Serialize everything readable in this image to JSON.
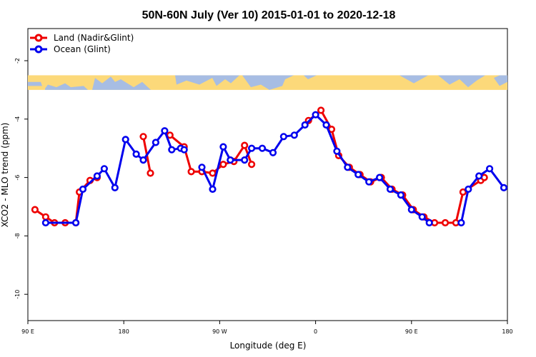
{
  "chart_data": {
    "type": "line",
    "title": "50N-60N July (Ver 10)   2015-01-01 to 2020-12-18",
    "xlabel": "Longitude (deg E)",
    "ylabel": "XCO2 - MLO trend (ppm)",
    "xlim": [
      -90,
      180
    ],
    "ylim": [
      -10.9,
      -0.9
    ],
    "x_ticks": [
      {
        "value": -90,
        "label": "90 E"
      },
      {
        "value": -36,
        "label": "180"
      },
      {
        "value": 18,
        "label": "90 W"
      },
      {
        "value": 72,
        "label": "0"
      },
      {
        "value": 126,
        "label": "90 E"
      },
      {
        "value": 180,
        "label": "180"
      }
    ],
    "y_ticks": [
      {
        "value": -2,
        "label": "-2"
      },
      {
        "value": -4,
        "label": "-4"
      },
      {
        "value": -6,
        "label": "-6"
      },
      {
        "value": -8,
        "label": "-8"
      },
      {
        "value": -10,
        "label": "-10"
      }
    ],
    "grid": false,
    "legend_position": "top-left",
    "map_band": {
      "y_top": -2.5,
      "y_bottom": -3.0,
      "ocean_color": "#a7bde3",
      "land_color": "#fcd97a"
    },
    "series": [
      {
        "name": "Land (Nadir&Glint)",
        "color": "#ee0000",
        "segments": [
          [
            [
              -86,
              -7.1
            ],
            [
              -80,
              -7.35
            ],
            [
              -75,
              -7.55
            ],
            [
              -69,
              -7.55
            ],
            [
              -63,
              -7.55
            ],
            [
              -61,
              -6.5
            ],
            [
              -55,
              -6.1
            ],
            [
              -51,
              -6.0
            ]
          ],
          [
            [
              -25,
              -4.6
            ],
            [
              -21,
              -5.85
            ]
          ],
          [
            [
              -10,
              -4.55
            ],
            [
              -2,
              -4.95
            ],
            [
              2,
              -5.8
            ],
            [
              8,
              -5.8
            ],
            [
              14,
              -5.85
            ],
            [
              20,
              -5.55
            ],
            [
              26,
              -5.45
            ],
            [
              32,
              -4.9
            ],
            [
              36,
              -5.55
            ]
          ],
          [
            [
              68,
              -4.05
            ],
            [
              75,
              -3.7
            ],
            [
              81,
              -4.35
            ],
            [
              85,
              -5.25
            ],
            [
              91,
              -5.65
            ],
            [
              97,
              -5.9
            ],
            [
              103,
              -6.15
            ],
            [
              109,
              -6.0
            ],
            [
              115,
              -6.4
            ],
            [
              121,
              -6.6
            ],
            [
              127,
              -7.1
            ],
            [
              133,
              -7.35
            ],
            [
              139,
              -7.55
            ],
            [
              145,
              -7.55
            ],
            [
              151,
              -7.55
            ],
            [
              155,
              -6.5
            ],
            [
              165,
              -6.1
            ],
            [
              167,
              -6.0
            ]
          ]
        ]
      },
      {
        "name": "Ocean (Glint)",
        "color": "#0000ee",
        "segments": [
          [
            [
              -80,
              -7.55
            ],
            [
              -63,
              -7.55
            ],
            [
              -59,
              -6.4
            ],
            [
              -51,
              -5.95
            ],
            [
              -47,
              -5.7
            ],
            [
              -41,
              -6.35
            ],
            [
              -35,
              -4.7
            ],
            [
              -29,
              -5.2
            ],
            [
              -25,
              -5.4
            ],
            [
              -18,
              -4.8
            ],
            [
              -13,
              -4.4
            ],
            [
              -9,
              -5.05
            ],
            [
              -4,
              -5.0
            ],
            [
              -2,
              -5.05
            ]
          ],
          [
            [
              8,
              -5.65
            ],
            [
              14,
              -6.4
            ],
            [
              20,
              -4.95
            ],
            [
              24,
              -5.4
            ],
            [
              32,
              -5.4
            ],
            [
              36,
              -5.0
            ],
            [
              42,
              -5.0
            ],
            [
              48,
              -5.15
            ],
            [
              54,
              -4.6
            ],
            [
              60,
              -4.55
            ],
            [
              66,
              -4.2
            ],
            [
              72,
              -3.85
            ],
            [
              78,
              -4.2
            ],
            [
              84,
              -5.1
            ],
            [
              90,
              -5.65
            ],
            [
              96,
              -5.9
            ],
            [
              102,
              -6.15
            ],
            [
              108,
              -6.0
            ],
            [
              114,
              -6.4
            ],
            [
              120,
              -6.6
            ],
            [
              126,
              -7.1
            ],
            [
              132,
              -7.35
            ],
            [
              136,
              -7.55
            ]
          ],
          [
            [
              154,
              -7.55
            ],
            [
              158,
              -6.4
            ],
            [
              164,
              -5.95
            ],
            [
              170,
              -5.7
            ],
            [
              178,
              -6.35
            ]
          ]
        ]
      }
    ]
  }
}
